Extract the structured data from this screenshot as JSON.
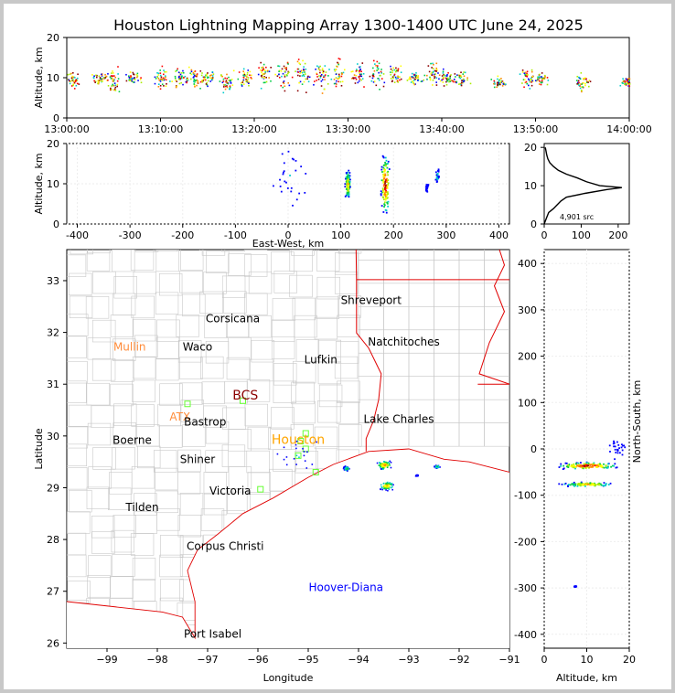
{
  "title": "Houston Lightning Mapping Array 1300-1400 UTC June 24, 2025",
  "colors": {
    "state_border": "#e00000",
    "county_border": "#c8c8c8",
    "city_label": "#000000",
    "network_label": "#ff8c3a",
    "houston_label": "#ffa500",
    "bcs_label": "#8b0000",
    "offshore_label": "#0000ff",
    "station_marker": "#66ff33",
    "density_scale": [
      "#0000ff",
      "#00cccc",
      "#00cc44",
      "#aaee00",
      "#ffff00",
      "#ff8800",
      "#ff0000",
      "#8b0000"
    ]
  },
  "chart_data": [
    {
      "id": "time_height",
      "type": "scatter",
      "xlabel": "",
      "ylabel": "Altitude, km",
      "xlim": [
        "13:00:00",
        "14:00:00"
      ],
      "ylim": [
        0,
        20
      ],
      "xticks": [
        "13:00:00",
        "13:10:00",
        "13:20:00",
        "13:30:00",
        "13:40:00",
        "13:50:00",
        "14:00:00"
      ],
      "yticks": [
        "0",
        "10",
        "20"
      ],
      "clusters": [
        {
          "t_min": 0.5,
          "alt_km": 10,
          "spread_km": 1.5
        },
        {
          "t_min": 3.5,
          "alt_km": 10,
          "spread_km": 1.0
        },
        {
          "t_min": 5.0,
          "alt_km": 9,
          "spread_km": 2.5
        },
        {
          "t_min": 7.0,
          "alt_km": 10,
          "spread_km": 1.0
        },
        {
          "t_min": 10.0,
          "alt_km": 10,
          "spread_km": 2.0
        },
        {
          "t_min": 12.0,
          "alt_km": 10,
          "spread_km": 2.0
        },
        {
          "t_min": 13.5,
          "alt_km": 10,
          "spread_km": 2.0
        },
        {
          "t_min": 15.0,
          "alt_km": 10,
          "spread_km": 1.5
        },
        {
          "t_min": 17.0,
          "alt_km": 9,
          "spread_km": 2.0
        },
        {
          "t_min": 19.0,
          "alt_km": 10,
          "spread_km": 2.0
        },
        {
          "t_min": 21.0,
          "alt_km": 11,
          "spread_km": 2.5
        },
        {
          "t_min": 23.0,
          "alt_km": 11,
          "spread_km": 3.0
        },
        {
          "t_min": 25.0,
          "alt_km": 11,
          "spread_km": 3.0
        },
        {
          "t_min": 27.0,
          "alt_km": 11,
          "spread_km": 3.0
        },
        {
          "t_min": 29.0,
          "alt_km": 11,
          "spread_km": 3.0
        },
        {
          "t_min": 31.0,
          "alt_km": 11,
          "spread_km": 2.5
        },
        {
          "t_min": 33.0,
          "alt_km": 11,
          "spread_km": 2.5
        },
        {
          "t_min": 35.0,
          "alt_km": 11,
          "spread_km": 2.0
        },
        {
          "t_min": 37.0,
          "alt_km": 10,
          "spread_km": 1.0
        },
        {
          "t_min": 39.0,
          "alt_km": 11,
          "spread_km": 2.0
        },
        {
          "t_min": 40.5,
          "alt_km": 10,
          "spread_km": 1.5
        },
        {
          "t_min": 42.0,
          "alt_km": 10,
          "spread_km": 1.5
        },
        {
          "t_min": 46.0,
          "alt_km": 9,
          "spread_km": 1.0
        },
        {
          "t_min": 49.0,
          "alt_km": 10,
          "spread_km": 2.0
        },
        {
          "t_min": 50.5,
          "alt_km": 10,
          "spread_km": 1.0
        },
        {
          "t_min": 55.0,
          "alt_km": 9,
          "spread_km": 1.5
        },
        {
          "t_min": 59.8,
          "alt_km": 9,
          "spread_km": 1.0
        }
      ]
    },
    {
      "id": "ew_height",
      "type": "scatter",
      "xlabel": "East-West, km",
      "ylabel": "Altitude, km",
      "xlim": [
        -420,
        420
      ],
      "ylim": [
        0,
        20
      ],
      "xticks": [
        "-400",
        "-300",
        "-200",
        "-100",
        "0",
        "100",
        "200",
        "300",
        "400"
      ],
      "yticks": [
        "0",
        "10",
        "20"
      ],
      "clusters": [
        {
          "x_km": 112,
          "alt_km": 10,
          "spread_x": 4,
          "spread_alt": 3,
          "density": 0.7
        },
        {
          "x_km": 183,
          "alt_km": 10,
          "spread_x": 7,
          "spread_alt": 6,
          "density": 1.0
        },
        {
          "x_km": 0,
          "alt_km": 12,
          "spread_x": 30,
          "spread_alt": 6,
          "density": 0.15
        },
        {
          "x_km": 282,
          "alt_km": 12,
          "spread_x": 3,
          "spread_alt": 2,
          "density": 0.2
        },
        {
          "x_km": 262,
          "alt_km": 9,
          "spread_x": 2,
          "spread_alt": 1,
          "density": 0.1
        }
      ]
    },
    {
      "id": "alt_histogram",
      "type": "line",
      "xlabel": "",
      "ylabel": "",
      "xlim": [
        0,
        230
      ],
      "ylim": [
        0,
        21
      ],
      "xticks": [
        "0",
        "100",
        "200"
      ],
      "yticks": [
        "0",
        "10",
        "20"
      ],
      "annotation": "4,901 src",
      "profile": [
        [
          0,
          0
        ],
        [
          4,
          1
        ],
        [
          8,
          2
        ],
        [
          12,
          3
        ],
        [
          25,
          4
        ],
        [
          35,
          5
        ],
        [
          45,
          6
        ],
        [
          60,
          7
        ],
        [
          110,
          8
        ],
        [
          170,
          9
        ],
        [
          210,
          9.5
        ],
        [
          150,
          10
        ],
        [
          115,
          11
        ],
        [
          90,
          12
        ],
        [
          60,
          13
        ],
        [
          38,
          14
        ],
        [
          25,
          15
        ],
        [
          15,
          16
        ],
        [
          10,
          17
        ],
        [
          7,
          18
        ],
        [
          5,
          19
        ],
        [
          3,
          20
        ]
      ]
    },
    {
      "id": "plan_view",
      "type": "scatter",
      "xlabel": "Longitude",
      "ylabel": "Latitude",
      "xlim": [
        -99.8,
        -91.0
      ],
      "ylim": [
        25.9,
        33.6
      ],
      "xticks": [
        "−99",
        "−98",
        "−97",
        "−96",
        "−95",
        "−94",
        "−93",
        "−92",
        "−91"
      ],
      "yticks": [
        "26",
        "27",
        "28",
        "29",
        "30",
        "31",
        "32",
        "33"
      ],
      "cities": [
        {
          "name": "Shreveport",
          "lon": -93.75,
          "lat": 32.55,
          "style": "city"
        },
        {
          "name": "Corsicana",
          "lon": -96.5,
          "lat": 32.2,
          "style": "city"
        },
        {
          "name": "Natchitoches",
          "lon": -93.1,
          "lat": 31.75,
          "style": "city"
        },
        {
          "name": "Mullin",
          "lon": -98.55,
          "lat": 31.65,
          "style": "network"
        },
        {
          "name": "Waco",
          "lon": -97.2,
          "lat": 31.65,
          "style": "city"
        },
        {
          "name": "Lufkin",
          "lon": -94.75,
          "lat": 31.4,
          "style": "city"
        },
        {
          "name": "BCS",
          "lon": -96.25,
          "lat": 30.7,
          "style": "bcs"
        },
        {
          "name": "ATX",
          "lon": -97.55,
          "lat": 30.3,
          "style": "network"
        },
        {
          "name": "Bastrop",
          "lon": -97.05,
          "lat": 30.2,
          "style": "city"
        },
        {
          "name": "Lake Charles",
          "lon": -93.2,
          "lat": 30.25,
          "style": "city"
        },
        {
          "name": "Boerne",
          "lon": -98.5,
          "lat": 29.85,
          "style": "city"
        },
        {
          "name": "Houston",
          "lon": -95.2,
          "lat": 29.85,
          "style": "houston"
        },
        {
          "name": "Shiner",
          "lon": -97.2,
          "lat": 29.48,
          "style": "city"
        },
        {
          "name": "Victoria",
          "lon": -96.55,
          "lat": 28.87,
          "style": "city"
        },
        {
          "name": "Tilden",
          "lon": -98.3,
          "lat": 28.55,
          "style": "city"
        },
        {
          "name": "Corpus Christi",
          "lon": -96.65,
          "lat": 27.8,
          "style": "city"
        },
        {
          "name": "Hoover-Diana",
          "lon": -94.25,
          "lat": 27.0,
          "style": "offshore"
        },
        {
          "name": "Port Isabel",
          "lon": -96.9,
          "lat": 26.1,
          "style": "city"
        }
      ],
      "stations": [
        {
          "lon": -97.4,
          "lat": 30.62
        },
        {
          "lon": -96.3,
          "lat": 30.68
        },
        {
          "lon": -95.05,
          "lat": 30.05
        },
        {
          "lon": -95.15,
          "lat": 29.9
        },
        {
          "lon": -95.2,
          "lat": 29.62
        },
        {
          "lon": -95.05,
          "lat": 29.75
        },
        {
          "lon": -94.85,
          "lat": 29.3
        },
        {
          "lon": -95.95,
          "lat": 28.97
        }
      ],
      "clusters": [
        {
          "lon": -93.5,
          "lat": 29.45,
          "spread_lon": 0.12,
          "spread_lat": 0.07,
          "density": 0.8
        },
        {
          "lon": -93.45,
          "lat": 29.05,
          "spread_lon": 0.12,
          "spread_lat": 0.07,
          "density": 0.7
        },
        {
          "lon": -94.25,
          "lat": 29.38,
          "spread_lon": 0.05,
          "spread_lat": 0.04,
          "density": 0.4
        },
        {
          "lon": -92.45,
          "lat": 29.42,
          "spread_lon": 0.05,
          "spread_lat": 0.03,
          "density": 0.3
        },
        {
          "lon": -92.85,
          "lat": 29.25,
          "spread_lon": 0.02,
          "spread_lat": 0.02,
          "density": 0.1
        },
        {
          "lon": -95.2,
          "lat": 29.65,
          "spread_lon": 0.35,
          "spread_lat": 0.25,
          "density": 0.15
        }
      ]
    },
    {
      "id": "ns_height",
      "type": "scatter",
      "xlabel": "Altitude, km",
      "ylabel": "North-South, km",
      "xlim": [
        0,
        20
      ],
      "ylim": [
        -430,
        430
      ],
      "xticks": [
        "0",
        "10",
        "20"
      ],
      "yticks": [
        "-400",
        "-300",
        "-200",
        "-100",
        "0",
        "100",
        "200",
        "300",
        "400"
      ],
      "clusters": [
        {
          "alt_km": 10,
          "y_km": -35,
          "spread_alt": 6,
          "spread_y": 6,
          "density": 1.0
        },
        {
          "alt_km": 10,
          "y_km": -75,
          "spread_alt": 5,
          "spread_y": 4,
          "density": 0.7
        },
        {
          "alt_km": 17,
          "y_km": 5,
          "spread_alt": 2,
          "spread_y": 20,
          "density": 0.15
        },
        {
          "alt_km": 7,
          "y_km": -295,
          "spread_alt": 0.5,
          "spread_y": 1,
          "density": 0.05
        }
      ]
    }
  ]
}
